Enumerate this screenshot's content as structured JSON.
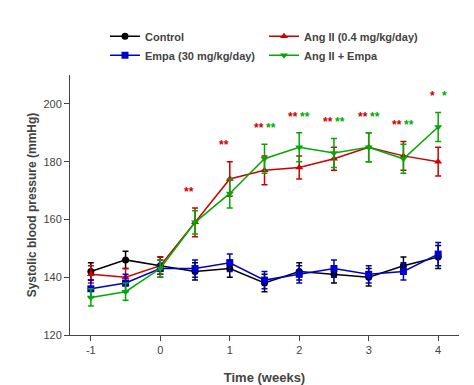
{
  "chart_data": {
    "type": "line",
    "xlabel": "Time (weeks)",
    "ylabel": "Systolic blood pressure (mmHg)",
    "x": [
      -1,
      -0.5,
      0,
      0.5,
      1,
      1.5,
      2,
      2.5,
      3,
      3.5,
      4
    ],
    "series": [
      {
        "name": "Control",
        "color": "#000000",
        "marker": "circle",
        "values": [
          142,
          146,
          144,
          142,
          143,
          138,
          142,
          141,
          140,
          144,
          147
        ],
        "error": [
          3,
          3,
          3,
          3,
          3,
          3,
          3,
          3,
          3,
          3,
          4
        ]
      },
      {
        "name": "Ang II (0.4 mg/kg/day)",
        "color": "#cc0000",
        "marker": "triangle-up",
        "values": [
          141,
          140,
          144,
          159,
          174,
          177,
          178,
          181,
          185,
          182,
          180
        ],
        "error": [
          3,
          3,
          3,
          5,
          6,
          5,
          4,
          4,
          5,
          5,
          5
        ],
        "annotations": [
          {
            "x": 0.5,
            "y": 166.5,
            "text": "**"
          },
          {
            "x": 1,
            "y": 182.5,
            "text": "**"
          },
          {
            "x": 1.5,
            "y": 188.5,
            "text": "**"
          },
          {
            "x": 2,
            "y": 192.5,
            "text": "**"
          },
          {
            "x": 2.5,
            "y": 190.5,
            "text": "**"
          },
          {
            "x": 3,
            "y": 192.5,
            "text": "**"
          },
          {
            "x": 3.5,
            "y": 189.5,
            "text": "**"
          },
          {
            "x": 4,
            "y": 199.5,
            "text": "*"
          }
        ]
      },
      {
        "name": "Empa (30 mg/kg/day)",
        "color": "#0000cc",
        "marker": "square",
        "values": [
          136,
          138,
          143,
          143,
          145,
          139,
          141,
          143,
          141,
          142,
          148
        ],
        "error": [
          3,
          3,
          3,
          3,
          3,
          3,
          3,
          3,
          3,
          3,
          4
        ]
      },
      {
        "name": "Ang II + Empa",
        "color": "#00aa00",
        "marker": "triangle-down",
        "values": [
          133,
          135,
          143,
          159,
          169,
          181,
          185,
          183,
          185,
          181,
          192
        ],
        "error": [
          3,
          3,
          3,
          4,
          5,
          5,
          5,
          5,
          5,
          5,
          5
        ],
        "annotations": [
          {
            "x": 1.5,
            "y": 188.5,
            "text": "**"
          },
          {
            "x": 2,
            "y": 192.5,
            "text": "**"
          },
          {
            "x": 2.5,
            "y": 190.5,
            "text": "**"
          },
          {
            "x": 3,
            "y": 192.5,
            "text": "**"
          },
          {
            "x": 3.5,
            "y": 189.5,
            "text": "**"
          },
          {
            "x": 4,
            "y": 199.5,
            "text": "*"
          }
        ]
      }
    ],
    "xlim": [
      -1.3,
      4.3
    ],
    "xticks": [
      -1,
      0,
      1,
      2,
      3,
      4
    ],
    "ylim": [
      120,
      210
    ],
    "yticks": [
      120,
      140,
      160,
      180,
      200
    ],
    "grid": false,
    "legend": "top"
  }
}
